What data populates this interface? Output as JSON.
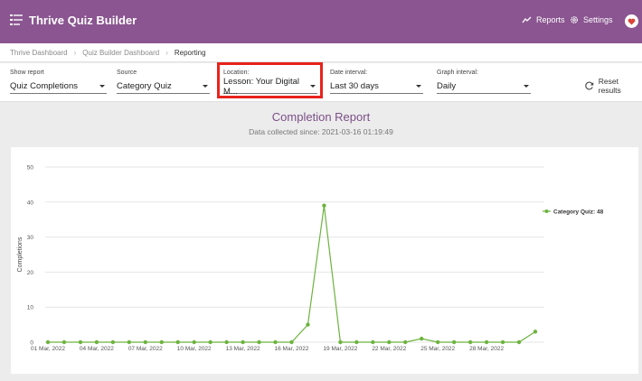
{
  "header": {
    "title": "Thrive Quiz Builder",
    "reports_label": "Reports",
    "settings_label": "Settings"
  },
  "breadcrumb": {
    "items": [
      "Thrive Dashboard",
      "Quiz Builder Dashboard",
      "Reporting"
    ]
  },
  "filters": {
    "show_report": {
      "label": "Show report",
      "value": "Quiz Completions"
    },
    "source": {
      "label": "Source",
      "value": "Category Quiz"
    },
    "location": {
      "label": "Location:",
      "value": "Lesson: Your Digital M..."
    },
    "date_interval": {
      "label": "Date interval:",
      "value": "Last 30 days"
    },
    "graph_interval": {
      "label": "Graph interval:",
      "value": "Daily"
    },
    "reset_label": "Reset results"
  },
  "report": {
    "title": "Completion Report",
    "subtitle": "Data collected since: 2021-03-16 01:19:49"
  },
  "colors": {
    "accent": "#8a5590",
    "series": "#6db33f",
    "highlight": "#e8231c"
  },
  "chart_data": {
    "type": "line",
    "ylabel": "Completions",
    "ylim": [
      0,
      50
    ],
    "yticks": [
      0,
      10,
      20,
      30,
      40,
      50
    ],
    "x": [
      "01 Mar, 2022",
      "02 Mar, 2022",
      "03 Mar, 2022",
      "04 Mar, 2022",
      "05 Mar, 2022",
      "06 Mar, 2022",
      "07 Mar, 2022",
      "08 Mar, 2022",
      "09 Mar, 2022",
      "10 Mar, 2022",
      "11 Mar, 2022",
      "12 Mar, 2022",
      "13 Mar, 2022",
      "14 Mar, 2022",
      "15 Mar, 2022",
      "16 Mar, 2022",
      "17 Mar, 2022",
      "18 Mar, 2022",
      "19 Mar, 2022",
      "20 Mar, 2022",
      "21 Mar, 2022",
      "22 Mar, 2022",
      "23 Mar, 2022",
      "24 Mar, 2022",
      "25 Mar, 2022",
      "26 Mar, 2022",
      "27 Mar, 2022",
      "28 Mar, 2022",
      "29 Mar, 2022",
      "30 Mar, 2022",
      "31 Mar, 2022"
    ],
    "xtick_labels": [
      "01 Mar, 2022",
      "04 Mar, 2022",
      "07 Mar, 2022",
      "10 Mar, 2022",
      "13 Mar, 2022",
      "16 Mar, 2022",
      "19 Mar, 2022",
      "22 Mar, 2022",
      "25 Mar, 2022",
      "28 Mar, 2022"
    ],
    "series": [
      {
        "name": "Category Quiz: 48",
        "values": [
          0,
          0,
          0,
          0,
          0,
          0,
          0,
          0,
          0,
          0,
          0,
          0,
          0,
          0,
          0,
          0,
          5,
          39,
          0,
          0,
          0,
          0,
          0,
          1,
          0,
          0,
          0,
          0,
          0,
          0,
          3
        ]
      }
    ],
    "grid": true,
    "legend": "right"
  }
}
